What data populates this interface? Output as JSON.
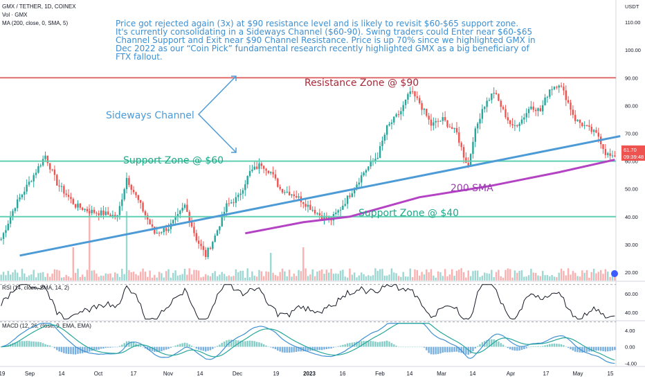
{
  "header": {
    "symbol_line": "GMX / TETHER, 1D, COINEX",
    "vol_line": "Vol · GMX",
    "ma_line": "MA (200, close, 0, SMA, 5)"
  },
  "annotation": [
    "Price got rejected again (3x) at $90 resistance level and is likely to revisit $60-$65 support zone.",
    "It's currently consolidating in a Sideways Channel ($60-90). Swing traders could Enter near $60-$65",
    "Channel Support and Exit near $90 Channel Resistance. Price is up 70% since we highlighted GMX in",
    "Dec 2022 as our “Coin Pick” fundamental research recently highlighted GMX as a big beneficiary of",
    "FTX fallout."
  ],
  "labels": {
    "resistance": "Resistance Zone @ $90",
    "sideways": "Sideways Channel",
    "support60": "Support Zone @ $60",
    "support40": "Support Zone @ $40",
    "sma": "200 SMA"
  },
  "price_tag": {
    "value": "61.70",
    "timer": "09:39:48"
  },
  "colors": {
    "up": "#26a69a",
    "down": "#ef5350",
    "resistance": "#e26d6d",
    "support": "#5ecfb1",
    "trend": "#4d9bd6",
    "sma": "#b443c4",
    "annotation": "#3d8fd1"
  },
  "chart_data": [
    {
      "type": "candlestick",
      "ylabel": "USDT",
      "ylim": [
        17,
        118
      ],
      "y_ticks": [
        "110.00",
        "100.00",
        "90.00",
        "80.00",
        "70.00",
        "60.00",
        "50.00",
        "40.00",
        "30.00",
        "20.00"
      ],
      "x_ticks": [
        "19",
        "Sep",
        "14",
        "Oct",
        "17",
        "Nov",
        "14",
        "Dec",
        "19",
        "2023",
        "16",
        "Feb",
        "14",
        "Mar",
        "14",
        "Apr",
        "17",
        "May",
        "15"
      ],
      "levels": {
        "resistance": 90,
        "support_channel": 60,
        "support_low": 40
      },
      "trendline": {
        "start": [
          8,
          26
        ],
        "end": [
          264,
          69
        ]
      },
      "close_anchors": [
        [
          0,
          32
        ],
        [
          6,
          44
        ],
        [
          14,
          55
        ],
        [
          19,
          62
        ],
        [
          24,
          52
        ],
        [
          32,
          44
        ],
        [
          38,
          42
        ],
        [
          45,
          41
        ],
        [
          50,
          40
        ],
        [
          54,
          54
        ],
        [
          60,
          44
        ],
        [
          66,
          34
        ],
        [
          72,
          36
        ],
        [
          76,
          40
        ],
        [
          79,
          44
        ],
        [
          84,
          32
        ],
        [
          88,
          26
        ],
        [
          92,
          33
        ],
        [
          97,
          44
        ],
        [
          102,
          47
        ],
        [
          107,
          56
        ],
        [
          112,
          59
        ],
        [
          116,
          56
        ],
        [
          120,
          50
        ],
        [
          126,
          48
        ],
        [
          132,
          44
        ],
        [
          138,
          40
        ],
        [
          142,
          39
        ],
        [
          146,
          43
        ],
        [
          150,
          48
        ],
        [
          156,
          56
        ],
        [
          162,
          62
        ],
        [
          166,
          72
        ],
        [
          172,
          78
        ],
        [
          176,
          85
        ],
        [
          180,
          81
        ],
        [
          185,
          73
        ],
        [
          190,
          75
        ],
        [
          196,
          70
        ],
        [
          199,
          62
        ],
        [
          201,
          58
        ],
        [
          203,
          68
        ],
        [
          207,
          79
        ],
        [
          212,
          85
        ],
        [
          216,
          78
        ],
        [
          220,
          72
        ],
        [
          224,
          75
        ],
        [
          228,
          80
        ],
        [
          232,
          78
        ],
        [
          236,
          86
        ],
        [
          240,
          88
        ],
        [
          243,
          83
        ],
        [
          247,
          75
        ],
        [
          252,
          72
        ],
        [
          257,
          69
        ],
        [
          260,
          63
        ],
        [
          263,
          61
        ],
        [
          264,
          61.7
        ]
      ],
      "sma200": {
        "start": [
          105,
          34
        ],
        "points": [
          [
            105,
            34
          ],
          [
            130,
            38
          ],
          [
            150,
            40
          ],
          [
            180,
            47
          ],
          [
            210,
            51
          ],
          [
            240,
            56
          ],
          [
            264,
            60.5
          ]
        ]
      },
      "volume": {
        "max_spike_index": 38,
        "bars": 265
      }
    },
    {
      "type": "line",
      "name": "RSI (14, close, SMA, 14, 2)",
      "ylim": [
        32,
        72
      ],
      "y_ticks": [
        "60.00",
        "40.00"
      ]
    },
    {
      "type": "line",
      "name": "MACD (12, 26, close, 9, EMA, EMA)",
      "ylim": [
        -4.6,
        6
      ],
      "y_ticks": [
        "4.00",
        "0.00",
        "-4.00"
      ]
    }
  ]
}
